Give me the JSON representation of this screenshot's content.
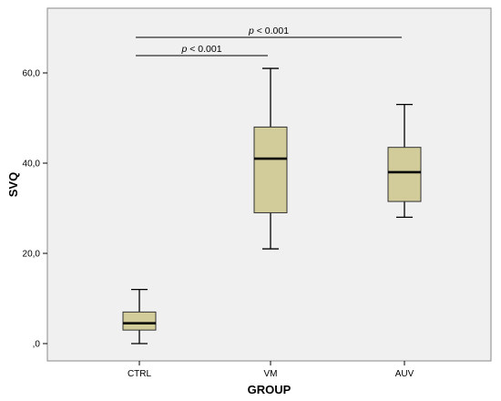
{
  "chart_data": {
    "type": "box",
    "xlabel": "GROUP",
    "ylabel": "SVQ",
    "ylim": [
      -5,
      72
    ],
    "yticks": [
      {
        "value": 0,
        "label": ",0"
      },
      {
        "value": 20,
        "label": "20,0"
      },
      {
        "value": 40,
        "label": "40,0"
      },
      {
        "value": 60,
        "label": "60,0"
      }
    ],
    "categories": [
      "CTRL",
      "VM",
      "AUV"
    ],
    "boxes": [
      {
        "category": "CTRL",
        "min": 0,
        "q1": 3,
        "median": 4.5,
        "q3": 7,
        "max": 12
      },
      {
        "category": "VM",
        "min": 21,
        "q1": 29,
        "median": 41,
        "q3": 48,
        "max": 61
      },
      {
        "category": "AUV",
        "min": 28,
        "q1": 31.5,
        "median": 38,
        "q3": 43.5,
        "max": 53
      }
    ],
    "annotations": [
      {
        "p_label": "p",
        "text": "< 0.001",
        "from": "CTRL",
        "to": "AUV"
      },
      {
        "p_label": "p",
        "text": "< 0.001",
        "from": "CTRL",
        "to": "VM"
      }
    ],
    "colors": {
      "plot_background": "#f0f0f0",
      "box_fill": "#d2cb9a",
      "box_stroke": "#333333",
      "median": "#000000"
    }
  }
}
